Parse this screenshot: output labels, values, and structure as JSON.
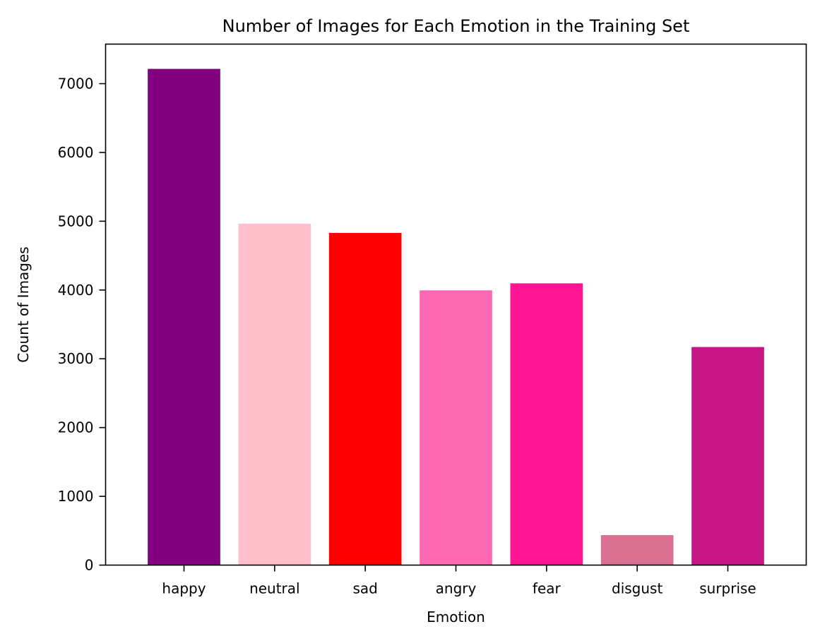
{
  "chart_data": {
    "type": "bar",
    "title": "Number of Images for Each Emotion in the Training Set",
    "xlabel": "Emotion",
    "ylabel": "Count of Images",
    "categories": [
      "happy",
      "neutral",
      "sad",
      "angry",
      "fear",
      "disgust",
      "surprise"
    ],
    "values": [
      7215,
      4965,
      4830,
      3995,
      4097,
      436,
      3171
    ],
    "colors": [
      "#800080",
      "#FFC0CB",
      "#FF0000",
      "#FF69B4",
      "#FF1493",
      "#DB7093",
      "#C71585"
    ],
    "ylim": [
      0,
      7575
    ],
    "yticks": [
      0,
      1000,
      2000,
      3000,
      4000,
      5000,
      6000,
      7000
    ],
    "grid": false,
    "legend": "none"
  }
}
